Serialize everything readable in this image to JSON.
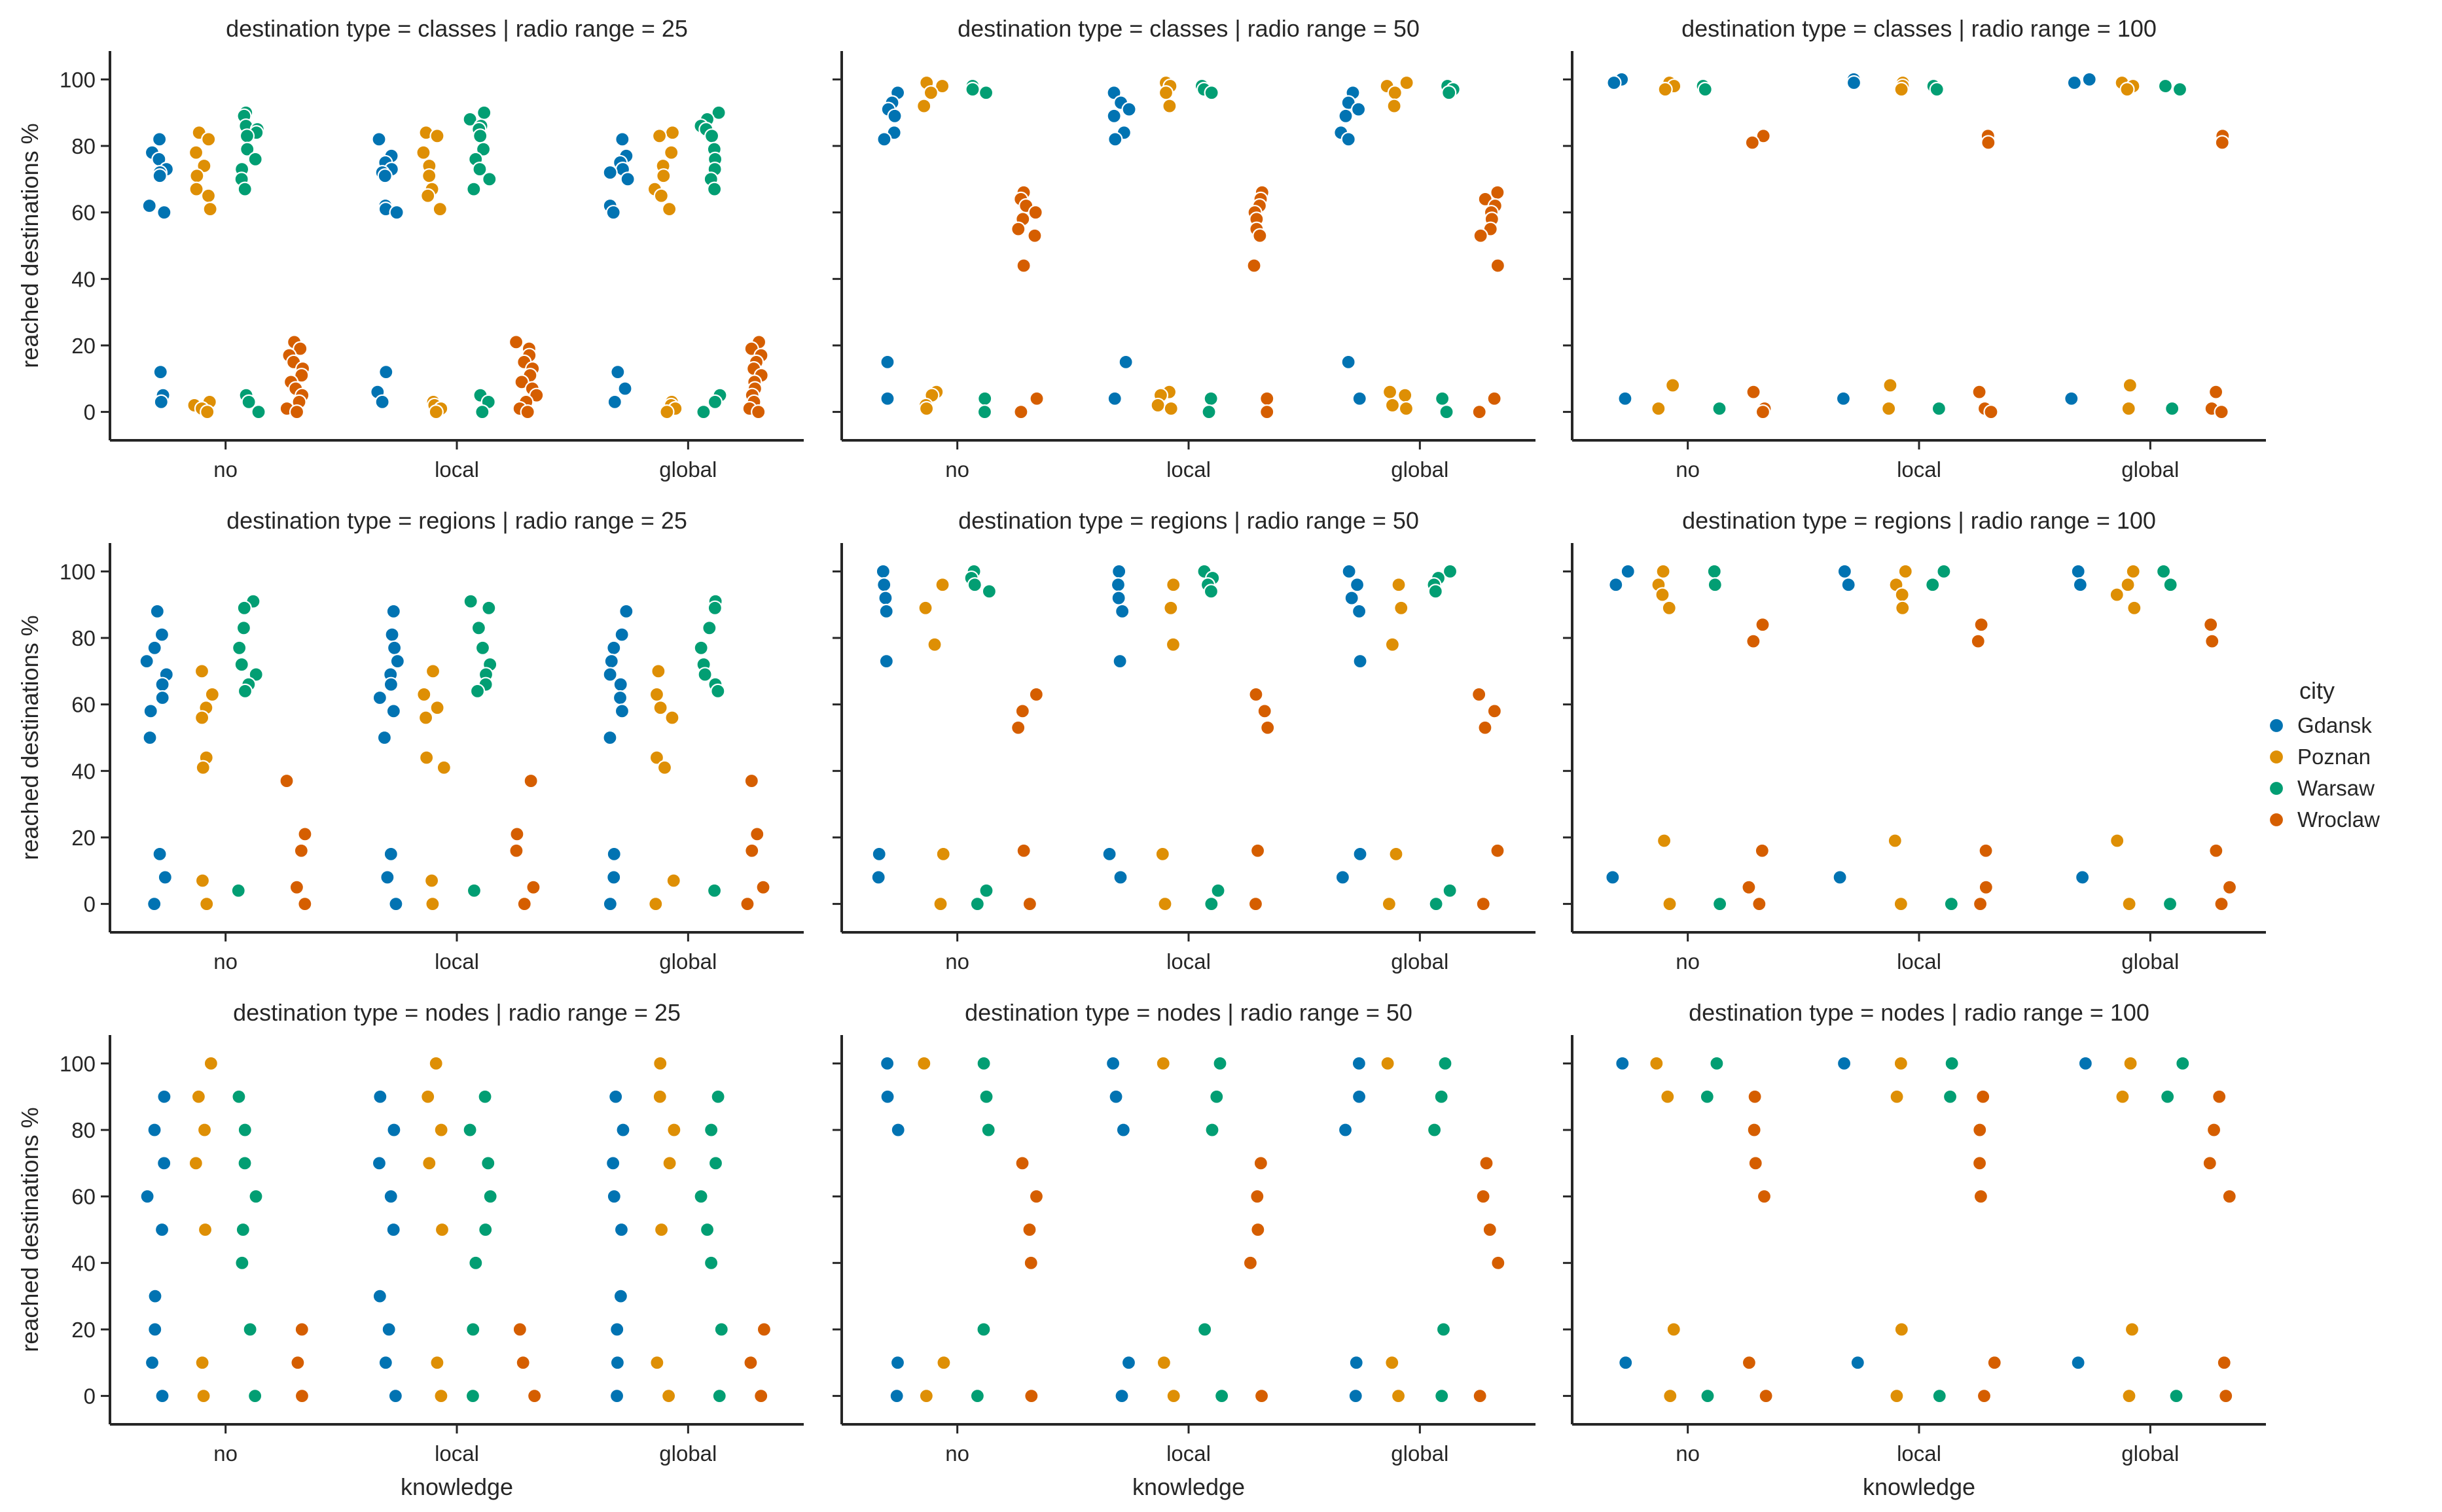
{
  "chart_data": {
    "type": "scatter",
    "subtype": "strip-plot grid (3 rows x 3 columns), jittered points",
    "y_axis_label": "reached destinations %",
    "x_axis_label": "knowledge",
    "categories": [
      "no",
      "local",
      "global"
    ],
    "ylim": [
      -5,
      105
    ],
    "yticks": [
      0,
      20,
      40,
      60,
      80,
      100
    ],
    "grid": false,
    "legend": {
      "title": "city",
      "placement": "right",
      "entries": [
        {
          "name": "Gdansk",
          "color": "#0173b2"
        },
        {
          "name": "Poznan",
          "color": "#de8f05"
        },
        {
          "name": "Warsaw",
          "color": "#029e73"
        },
        {
          "name": "Wroclaw",
          "color": "#d55e00"
        }
      ]
    },
    "panels": [
      {
        "title": "destination type = classes | radio range = 25",
        "show_x_label": false,
        "series": {
          "Gdansk": {
            "no": [
              82,
              78,
              76,
              73,
              72,
              71,
              62,
              60,
              12,
              5,
              3
            ],
            "local": [
              82,
              77,
              75,
              73,
              72,
              71,
              62,
              61,
              60,
              12,
              6,
              3
            ],
            "global": [
              82,
              77,
              75,
              73,
              72,
              70,
              62,
              60,
              12,
              7,
              3
            ]
          },
          "Poznan": {
            "no": [
              84,
              82,
              78,
              74,
              71,
              67,
              65,
              61,
              3,
              2,
              1,
              0
            ],
            "local": [
              84,
              83,
              78,
              74,
              71,
              67,
              65,
              61,
              3,
              2,
              1,
              0
            ],
            "global": [
              84,
              83,
              78,
              74,
              71,
              67,
              65,
              61,
              3,
              2,
              1,
              0
            ]
          },
          "Warsaw": {
            "no": [
              90,
              89,
              86,
              85,
              84,
              83,
              79,
              76,
              73,
              70,
              67,
              5,
              3,
              0
            ],
            "local": [
              90,
              88,
              86,
              85,
              83,
              79,
              76,
              73,
              70,
              67,
              5,
              3,
              0
            ],
            "global": [
              90,
              88,
              86,
              85,
              83,
              79,
              76,
              73,
              70,
              67,
              5,
              3,
              0
            ]
          },
          "Wroclaw": {
            "no": [
              21,
              19,
              17,
              15,
              13,
              11,
              9,
              7,
              5,
              3,
              1,
              0
            ],
            "local": [
              21,
              19,
              17,
              15,
              13,
              11,
              9,
              7,
              5,
              3,
              1,
              0
            ],
            "global": [
              21,
              19,
              17,
              15,
              13,
              11,
              9,
              7,
              5,
              3,
              1,
              0
            ]
          }
        }
      },
      {
        "title": "destination type = classes | radio range = 50",
        "show_x_label": false,
        "series": {
          "Gdansk": {
            "no": [
              96,
              93,
              91,
              89,
              84,
              82,
              15,
              4
            ],
            "local": [
              96,
              93,
              91,
              89,
              84,
              82,
              15,
              4
            ],
            "global": [
              96,
              93,
              91,
              89,
              84,
              82,
              15,
              4
            ]
          },
          "Poznan": {
            "no": [
              99,
              98,
              96,
              92,
              6,
              5,
              2,
              1
            ],
            "local": [
              99,
              98,
              96,
              92,
              6,
              5,
              2,
              1
            ],
            "global": [
              99,
              98,
              96,
              92,
              6,
              5,
              2,
              1
            ]
          },
          "Warsaw": {
            "no": [
              98,
              97,
              96,
              4,
              0
            ],
            "local": [
              98,
              97,
              96,
              4,
              0
            ],
            "global": [
              98,
              97,
              96,
              4,
              0
            ]
          },
          "Wroclaw": {
            "no": [
              66,
              64,
              62,
              60,
              58,
              55,
              53,
              44,
              4,
              0
            ],
            "local": [
              66,
              64,
              62,
              60,
              58,
              55,
              53,
              44,
              4,
              0
            ],
            "global": [
              66,
              64,
              62,
              60,
              58,
              55,
              53,
              44,
              4,
              0
            ]
          }
        }
      },
      {
        "title": "destination type = classes | radio range = 100",
        "show_x_label": false,
        "series": {
          "Gdansk": {
            "no": [
              100,
              99,
              4
            ],
            "local": [
              100,
              99,
              4
            ],
            "global": [
              100,
              99,
              4
            ]
          },
          "Poznan": {
            "no": [
              99,
              98,
              97,
              8,
              1
            ],
            "local": [
              99,
              98,
              97,
              8,
              1
            ],
            "global": [
              99,
              98,
              97,
              8,
              1
            ]
          },
          "Warsaw": {
            "no": [
              98,
              97,
              1
            ],
            "local": [
              98,
              97,
              1
            ],
            "global": [
              98,
              97,
              1
            ]
          },
          "Wroclaw": {
            "no": [
              83,
              81,
              6,
              1,
              0
            ],
            "local": [
              83,
              81,
              6,
              1,
              0
            ],
            "global": [
              83,
              81,
              6,
              1,
              0
            ]
          }
        }
      },
      {
        "title": "destination type = regions | radio range = 25",
        "show_x_label": false,
        "series": {
          "Gdansk": {
            "no": [
              88,
              81,
              77,
              73,
              69,
              66,
              62,
              58,
              50,
              15,
              8,
              0
            ],
            "local": [
              88,
              81,
              77,
              73,
              69,
              66,
              62,
              58,
              50,
              15,
              8,
              0
            ],
            "global": [
              88,
              81,
              77,
              73,
              69,
              66,
              62,
              58,
              50,
              15,
              8,
              0
            ]
          },
          "Poznan": {
            "no": [
              70,
              63,
              59,
              56,
              44,
              41,
              7,
              0
            ],
            "local": [
              70,
              63,
              59,
              56,
              44,
              41,
              7,
              0
            ],
            "global": [
              70,
              63,
              59,
              56,
              44,
              41,
              7,
              0
            ]
          },
          "Warsaw": {
            "no": [
              91,
              89,
              83,
              77,
              72,
              69,
              66,
              64,
              4
            ],
            "local": [
              91,
              89,
              83,
              77,
              72,
              69,
              66,
              64,
              4
            ],
            "global": [
              91,
              89,
              83,
              77,
              72,
              69,
              66,
              64,
              4
            ]
          },
          "Wroclaw": {
            "no": [
              37,
              21,
              16,
              5,
              0
            ],
            "local": [
              37,
              21,
              16,
              5,
              0
            ],
            "global": [
              37,
              21,
              16,
              5,
              0
            ]
          }
        }
      },
      {
        "title": "destination type = regions | radio range = 50",
        "show_x_label": false,
        "series": {
          "Gdansk": {
            "no": [
              100,
              96,
              92,
              88,
              73,
              15,
              8
            ],
            "local": [
              100,
              96,
              92,
              88,
              73,
              15,
              8
            ],
            "global": [
              100,
              96,
              92,
              88,
              73,
              15,
              8
            ]
          },
          "Poznan": {
            "no": [
              96,
              89,
              78,
              15,
              0
            ],
            "local": [
              96,
              89,
              78,
              15,
              0
            ],
            "global": [
              96,
              89,
              78,
              15,
              0
            ]
          },
          "Warsaw": {
            "no": [
              100,
              98,
              96,
              94,
              4,
              0
            ],
            "local": [
              100,
              98,
              96,
              94,
              4,
              0
            ],
            "global": [
              100,
              98,
              96,
              94,
              4,
              0
            ]
          },
          "Wroclaw": {
            "no": [
              63,
              58,
              53,
              16,
              0
            ],
            "local": [
              63,
              58,
              53,
              16,
              0
            ],
            "global": [
              63,
              58,
              53,
              16,
              0
            ]
          }
        }
      },
      {
        "title": "destination type = regions | radio range = 100",
        "show_x_label": false,
        "series": {
          "Gdansk": {
            "no": [
              100,
              96,
              8
            ],
            "local": [
              100,
              96,
              8
            ],
            "global": [
              100,
              96,
              8
            ]
          },
          "Poznan": {
            "no": [
              100,
              96,
              93,
              89,
              19,
              0
            ],
            "local": [
              100,
              96,
              93,
              89,
              19,
              0
            ],
            "global": [
              100,
              96,
              93,
              89,
              19,
              0
            ]
          },
          "Warsaw": {
            "no": [
              100,
              96,
              0
            ],
            "local": [
              100,
              96,
              0
            ],
            "global": [
              100,
              96,
              0
            ]
          },
          "Wroclaw": {
            "no": [
              84,
              79,
              16,
              5,
              0
            ],
            "local": [
              84,
              79,
              16,
              5,
              0
            ],
            "global": [
              84,
              79,
              16,
              5,
              0
            ]
          }
        }
      },
      {
        "title": "destination type = nodes | radio range = 25",
        "show_x_label": true,
        "series": {
          "Gdansk": {
            "no": [
              90,
              80,
              70,
              60,
              50,
              30,
              20,
              10,
              0
            ],
            "local": [
              90,
              80,
              70,
              60,
              50,
              30,
              20,
              10,
              0
            ],
            "global": [
              90,
              80,
              70,
              60,
              50,
              30,
              20,
              10,
              0
            ]
          },
          "Poznan": {
            "no": [
              100,
              90,
              80,
              70,
              50,
              10,
              0
            ],
            "local": [
              100,
              90,
              80,
              70,
              50,
              10,
              0
            ],
            "global": [
              100,
              90,
              80,
              70,
              50,
              10,
              0
            ]
          },
          "Warsaw": {
            "no": [
              90,
              80,
              70,
              60,
              50,
              40,
              20,
              0
            ],
            "local": [
              90,
              80,
              70,
              60,
              50,
              40,
              20,
              0
            ],
            "global": [
              90,
              80,
              70,
              60,
              50,
              40,
              20,
              0
            ]
          },
          "Wroclaw": {
            "no": [
              20,
              10,
              0
            ],
            "local": [
              20,
              10,
              0
            ],
            "global": [
              20,
              10,
              0
            ]
          }
        }
      },
      {
        "title": "destination type = nodes | radio range = 50",
        "show_x_label": true,
        "series": {
          "Gdansk": {
            "no": [
              100,
              90,
              80,
              10,
              0
            ],
            "local": [
              100,
              90,
              80,
              10,
              0
            ],
            "global": [
              100,
              90,
              80,
              10,
              0
            ]
          },
          "Poznan": {
            "no": [
              100,
              10,
              0
            ],
            "local": [
              100,
              10,
              0
            ],
            "global": [
              100,
              10,
              0
            ]
          },
          "Warsaw": {
            "no": [
              100,
              90,
              80,
              20,
              0
            ],
            "local": [
              100,
              90,
              80,
              20,
              0
            ],
            "global": [
              100,
              90,
              80,
              20,
              0
            ]
          },
          "Wroclaw": {
            "no": [
              70,
              60,
              50,
              40,
              0
            ],
            "local": [
              70,
              60,
              50,
              40,
              0
            ],
            "global": [
              70,
              60,
              50,
              40,
              0
            ]
          }
        }
      },
      {
        "title": "destination type = nodes | radio range = 100",
        "show_x_label": true,
        "series": {
          "Gdansk": {
            "no": [
              100,
              10
            ],
            "local": [
              100,
              10
            ],
            "global": [
              100,
              10
            ]
          },
          "Poznan": {
            "no": [
              100,
              90,
              20,
              0
            ],
            "local": [
              100,
              90,
              20,
              0
            ],
            "global": [
              100,
              90,
              20,
              0
            ]
          },
          "Warsaw": {
            "no": [
              100,
              90,
              0
            ],
            "local": [
              100,
              90,
              0
            ],
            "global": [
              100,
              90,
              0
            ]
          },
          "Wroclaw": {
            "no": [
              90,
              80,
              70,
              60,
              10,
              0
            ],
            "local": [
              90,
              80,
              70,
              60,
              10,
              0
            ],
            "global": [
              90,
              80,
              70,
              60,
              10,
              0
            ]
          }
        }
      }
    ]
  }
}
